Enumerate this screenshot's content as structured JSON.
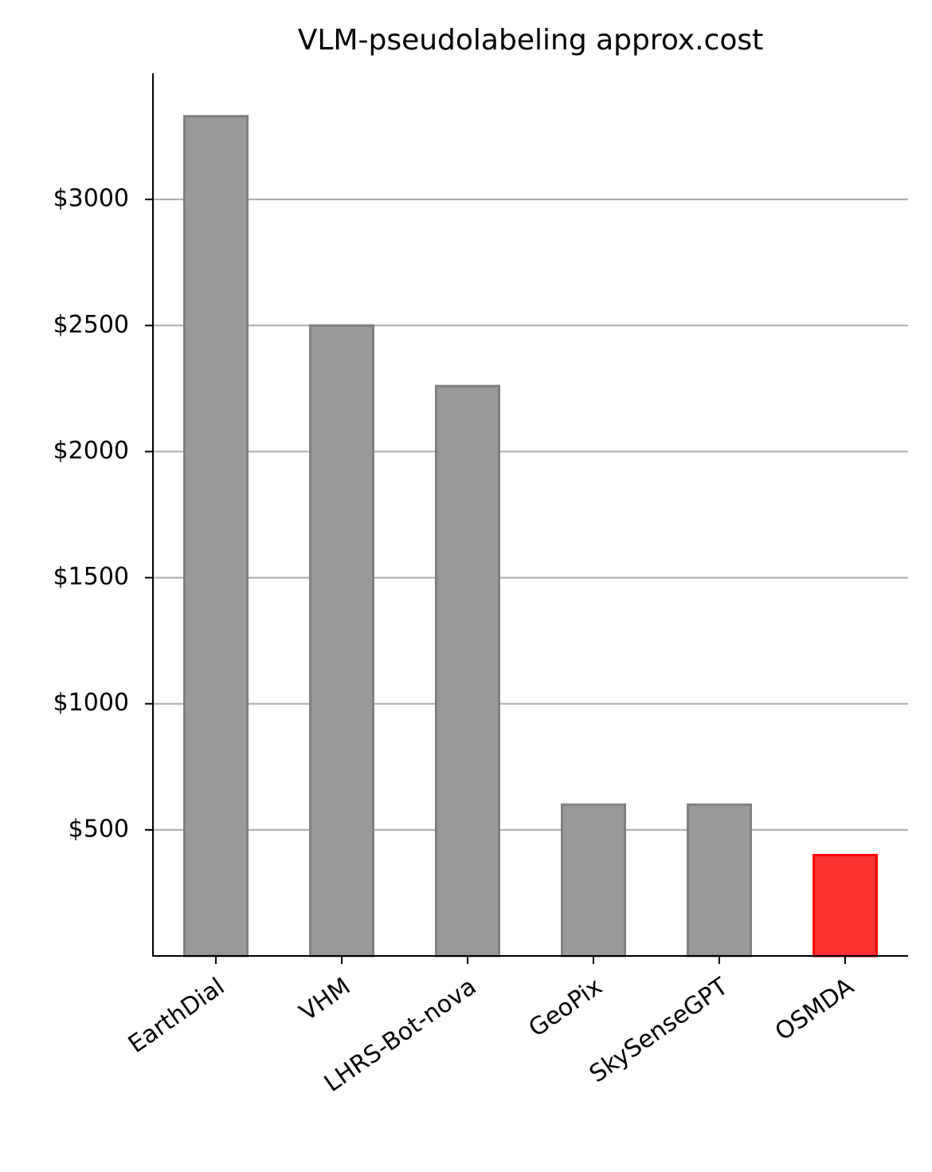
{
  "chart_data": {
    "type": "bar",
    "title": "VLM-pseudolabeling approx.cost",
    "categories": [
      "EarthDial",
      "VHM",
      "LHRS-Bot-nova",
      "GeoPix",
      "SkySenseGPT",
      "OSMDA"
    ],
    "values": [
      3330,
      2500,
      2260,
      600,
      600,
      400
    ],
    "colors": [
      "#999999",
      "#999999",
      "#999999",
      "#999999",
      "#999999",
      "#ff3333"
    ],
    "edgecolors": [
      "#808080",
      "#808080",
      "#808080",
      "#808080",
      "#808080",
      "#ff0000"
    ],
    "ylim": [
      0,
      3500
    ],
    "yticks": [
      {
        "value": 500,
        "label": "$500"
      },
      {
        "value": 1000,
        "label": "$1000"
      },
      {
        "value": 1500,
        "label": "$1500"
      },
      {
        "value": 2000,
        "label": "$2000"
      },
      {
        "value": 2500,
        "label": "$2500"
      },
      {
        "value": 3000,
        "label": "$3000"
      }
    ],
    "grid": true
  }
}
